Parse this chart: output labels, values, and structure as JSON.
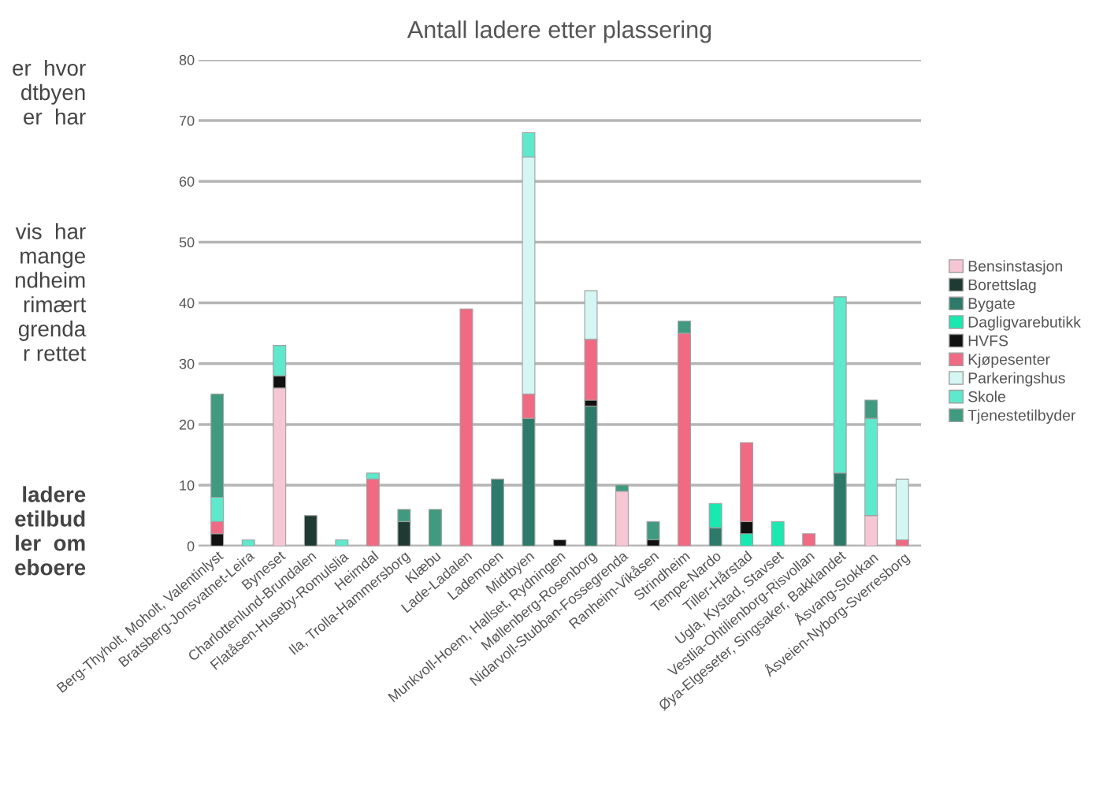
{
  "chart_data": {
    "type": "bar",
    "stacked": true,
    "title": "Antall ladere etter plassering",
    "categories": [
      "Berg-Thyholt, Moholt, Valentinlyst",
      "Bratsberg-Jonsvatnet-Leira",
      "Byneset",
      "Charlottenlund-Brundalen",
      "Flatåsen-Huseby-Romulslia",
      "Heimdal",
      "Ila, Trolla-Hammersborg",
      "Klæbu",
      "Lade-Ladalen",
      "Lademoen",
      "Midtbyen",
      "Munkvoll-Hoem, Hallset, Rydningen",
      "Møllenberg-Rosenborg",
      "Nidarvoll-Stubban-Fossegrenda",
      "Ranheim-Vikåsen",
      "Strindheim",
      "Tempe-Nardo",
      "Tiller-Hårstad",
      "Ugla, Kystad, Stavset",
      "Vestlia-Ohtilienborg-Risvollan",
      "Øya-Elgeseter, Singsaker, Bakklandet",
      "Åsvang-Stokkan",
      "Åsveien-Nyborg-Sverresborg"
    ],
    "series": [
      {
        "name": "Bensinstasjon",
        "color": "#f7c6d4",
        "values": [
          0,
          0,
          26,
          0,
          0,
          0,
          0,
          0,
          0,
          0,
          0,
          0,
          0,
          9,
          0,
          0,
          0,
          0,
          0,
          0,
          0,
          5,
          0
        ]
      },
      {
        "name": "Borettslag",
        "color": "#1f3a32",
        "values": [
          0,
          0,
          0,
          5,
          0,
          0,
          4,
          0,
          0,
          0,
          0,
          0,
          0,
          0,
          0,
          0,
          0,
          0,
          0,
          0,
          0,
          0,
          0
        ]
      },
      {
        "name": "Bygate",
        "color": "#2e7a6a",
        "values": [
          0,
          0,
          0,
          0,
          0,
          0,
          0,
          0,
          0,
          11,
          21,
          0,
          23,
          0,
          0,
          0,
          3,
          0,
          0,
          0,
          12,
          0,
          0
        ]
      },
      {
        "name": "Dagligvarebutikk",
        "color": "#19e8b0",
        "values": [
          0,
          0,
          0,
          0,
          0,
          0,
          0,
          0,
          0,
          0,
          0,
          0,
          0,
          0,
          0,
          0,
          4,
          2,
          4,
          0,
          0,
          0,
          0
        ]
      },
      {
        "name": "HVFS",
        "color": "#111111",
        "values": [
          2,
          0,
          2,
          0,
          0,
          0,
          0,
          0,
          0,
          0,
          0,
          1,
          1,
          0,
          1,
          0,
          0,
          2,
          0,
          0,
          0,
          0,
          0
        ]
      },
      {
        "name": "Kjøpesenter",
        "color": "#f06a84",
        "values": [
          2,
          0,
          0,
          0,
          0,
          11,
          0,
          0,
          39,
          0,
          4,
          0,
          10,
          0,
          0,
          35,
          0,
          13,
          0,
          2,
          0,
          0,
          1
        ]
      },
      {
        "name": "Parkeringshus",
        "color": "#d4f7f3",
        "values": [
          0,
          0,
          0,
          0,
          0,
          0,
          0,
          0,
          0,
          0,
          39,
          0,
          8,
          0,
          0,
          0,
          0,
          0,
          0,
          0,
          0,
          0,
          10
        ]
      },
      {
        "name": "Skole",
        "color": "#5ee8cc",
        "values": [
          4,
          1,
          5,
          0,
          1,
          1,
          0,
          0,
          0,
          0,
          4,
          0,
          0,
          0,
          0,
          0,
          0,
          0,
          0,
          0,
          29,
          16,
          0
        ]
      },
      {
        "name": "Tjenestetilbyder",
        "color": "#3f9a80",
        "values": [
          17,
          0,
          0,
          0,
          0,
          0,
          2,
          6,
          0,
          0,
          0,
          0,
          0,
          1,
          3,
          2,
          0,
          0,
          0,
          0,
          0,
          3,
          0
        ]
      }
    ],
    "ylim": [
      0,
      80
    ],
    "yticks": [
      0,
      10,
      20,
      30,
      40,
      50,
      60,
      70,
      80
    ],
    "grid": "y",
    "legend": "right",
    "annotations": [
      "er  hvor\ndtbyen\ner  har",
      "vis  har\nmange\nndheim\nrimært\ngrenda\nr rettet",
      "ladere\netilbud\nler  om\neboere"
    ]
  }
}
